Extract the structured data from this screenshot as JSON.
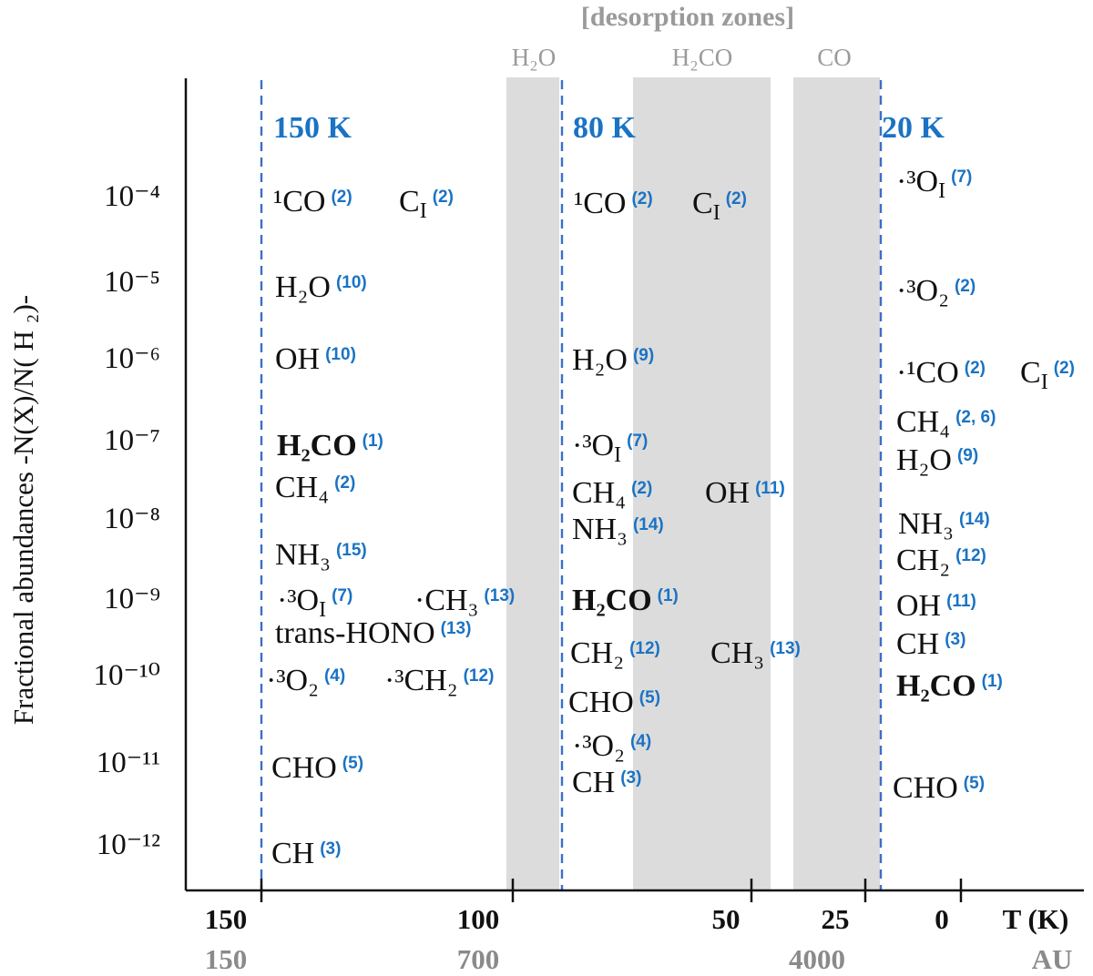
{
  "header": {
    "desorption_title": "[desorption zones]"
  },
  "zones": [
    {
      "id": "h2o",
      "label": "H₂O",
      "x0": 98,
      "x1": 87
    },
    {
      "id": "h2co",
      "label": "H₂CO",
      "x0": 72,
      "x1": 43
    },
    {
      "id": "co",
      "label": "CO",
      "x0": 38,
      "x1": 18
    }
  ],
  "temperature_markers": [
    {
      "value": 150,
      "label": "150 K"
    },
    {
      "value": 88,
      "label": "80 K"
    },
    {
      "value": 19,
      "label": "20 K"
    }
  ],
  "axes": {
    "y_label": "Fractional abundances -N(X)/N( H ₂)-",
    "y_ticks": [
      "10⁻⁴",
      "10⁻⁵",
      "10⁻⁶",
      "10⁻⁷",
      "10⁻⁸",
      "10⁻⁹",
      "10⁻¹⁰",
      "10⁻¹¹",
      "10⁻¹²"
    ],
    "x_unit_T": "T (K)",
    "x_unit_AU": "AU",
    "x_ticks_T": [
      "150",
      "100",
      "50",
      "25",
      "0"
    ],
    "x_ticks_AU": [
      "150",
      "700",
      "4000"
    ]
  },
  "columns": {
    "c150": [
      {
        "species": "¹CO",
        "ref": "(2)",
        "log": -4
      },
      {
        "species": "C<sub>I</sub>",
        "ref": "(2)",
        "log": -4
      },
      {
        "species": "H₂O",
        "ref": "(10)",
        "log": -5
      },
      {
        "species": "OH",
        "ref": "(10)",
        "log": -6
      },
      {
        "species": "H₂CO",
        "ref": "(1)",
        "log": -7,
        "bold": true
      },
      {
        "species": "CH₄",
        "ref": "(2)",
        "log": -7.5
      },
      {
        "species": "NH₃",
        "ref": "(15)",
        "log": -8.5
      },
      {
        "species": "·³O<sub>I</sub>",
        "ref": "(7)",
        "log": -9
      },
      {
        "species": "·CH₃",
        "ref": "(13)",
        "log": -9
      },
      {
        "species": "trans-HONO",
        "ref": "(13)",
        "log": -9.4
      },
      {
        "species": "·³O₂",
        "ref": "(4)",
        "log": -10
      },
      {
        "species": "·³CH₂",
        "ref": "(12)",
        "log": -10
      },
      {
        "species": "CHO",
        "ref": "(5)",
        "log": -11
      },
      {
        "species": "CH",
        "ref": "(3)",
        "log": -12
      }
    ],
    "c80": [
      {
        "species": "¹CO",
        "ref": "(2)",
        "log": -4
      },
      {
        "species": "C<sub>I</sub>",
        "ref": "(2)",
        "log": -4
      },
      {
        "species": "H₂O",
        "ref": "(9)",
        "log": -6
      },
      {
        "species": "·³O<sub>I</sub>",
        "ref": "(7)",
        "log": -7
      },
      {
        "species": "CH₄",
        "ref": "(2)",
        "log": -7.5
      },
      {
        "species": "OH",
        "ref": "(11)",
        "log": -7.5
      },
      {
        "species": "NH₃",
        "ref": "(14)",
        "log": -8
      },
      {
        "species": "H₂CO",
        "ref": "(1)",
        "log": -9,
        "bold": true
      },
      {
        "species": "CH₂",
        "ref": "(12)",
        "log": -9.5
      },
      {
        "species": "CH₃",
        "ref": "(13)",
        "log": -9.5
      },
      {
        "species": "CHO",
        "ref": "(5)",
        "log": -10
      },
      {
        "species": "·³O₂",
        "ref": "(4)",
        "log": -10.6
      },
      {
        "species": "CH",
        "ref": "(3)",
        "log": -11
      }
    ],
    "c20": [
      {
        "species": "·³O<sub>I</sub>",
        "ref": "(7)",
        "log": -4
      },
      {
        "species": "·³O₂",
        "ref": "(2)",
        "log": -5
      },
      {
        "species": "·¹CO",
        "ref": "(2)",
        "log": -6
      },
      {
        "species": "C<sub>I</sub>",
        "ref": "(2)",
        "log": -6
      },
      {
        "species": "CH₄",
        "ref": "(2, 6)",
        "log": -7
      },
      {
        "species": "H₂O",
        "ref": "(9)",
        "log": -7.4
      },
      {
        "species": "NH₃",
        "ref": "(14)",
        "log": -8
      },
      {
        "species": "CH₂",
        "ref": "(12)",
        "log": -8.5
      },
      {
        "species": "OH",
        "ref": "(11)",
        "log": -9
      },
      {
        "species": "CH",
        "ref": "(3)",
        "log": -9.5
      },
      {
        "species": "H₂CO",
        "ref": "(1)",
        "log": -10,
        "bold": true
      },
      {
        "species": "CHO",
        "ref": "(5)",
        "log": -11
      }
    ]
  },
  "colors": {
    "accent_blue": "#1a73c4",
    "zone_gray": "#dcdcdc",
    "axis": "#111111",
    "label_gray": "#9a9a9a"
  }
}
